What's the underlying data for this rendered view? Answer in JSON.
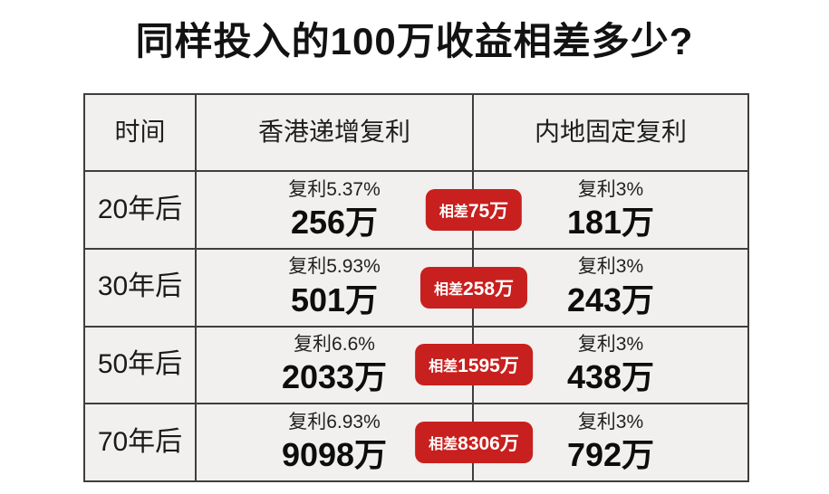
{
  "title": "同样投入的100万收益相差多少?",
  "table": {
    "headers": {
      "time": "时间",
      "hk": "香港递增复利",
      "mainland": "内地固定复利"
    },
    "rows": [
      {
        "time": "20年后",
        "hk_rate": "复利5.37%",
        "hk_value": "256万",
        "diff_prefix": "相差",
        "diff_value": "75万",
        "ml_rate": "复利3%",
        "ml_value": "181万"
      },
      {
        "time": "30年后",
        "hk_rate": "复利5.93%",
        "hk_value": "501万",
        "diff_prefix": "相差",
        "diff_value": "258万",
        "ml_rate": "复利3%",
        "ml_value": "243万"
      },
      {
        "time": "50年后",
        "hk_rate": "复利6.6%",
        "hk_value": "2033万",
        "diff_prefix": "相差",
        "diff_value": "1595万",
        "ml_rate": "复利3%",
        "ml_value": "438万"
      },
      {
        "time": "70年后",
        "hk_rate": "复利6.93%",
        "hk_value": "9098万",
        "diff_prefix": "相差",
        "diff_value": "8306万",
        "ml_rate": "复利3%",
        "ml_value": "792万"
      }
    ]
  },
  "colors": {
    "badge_red": "#c8201e",
    "cell_background": "#f1f0ee",
    "table_border": "#3e3e3e",
    "title_text": "#121212"
  },
  "chart_data": {
    "type": "table",
    "title": "同样投入的100万收益相差多少?",
    "columns": [
      "时间",
      "香港递增复利",
      "内地固定复利"
    ],
    "unit": "万",
    "principal_wan": 100,
    "rows": [
      {
        "time_years": 20,
        "hk_rate_pct": 5.37,
        "hk_value_wan": 256,
        "diff_wan": 75,
        "mainland_rate_pct": 3,
        "mainland_value_wan": 181
      },
      {
        "time_years": 30,
        "hk_rate_pct": 5.93,
        "hk_value_wan": 501,
        "diff_wan": 258,
        "mainland_rate_pct": 3,
        "mainland_value_wan": 243
      },
      {
        "time_years": 50,
        "hk_rate_pct": 6.6,
        "hk_value_wan": 2033,
        "diff_wan": 1595,
        "mainland_rate_pct": 3,
        "mainland_value_wan": 438
      },
      {
        "time_years": 70,
        "hk_rate_pct": 6.93,
        "hk_value_wan": 9098,
        "diff_wan": 8306,
        "mainland_rate_pct": 3,
        "mainland_value_wan": 792
      }
    ]
  }
}
